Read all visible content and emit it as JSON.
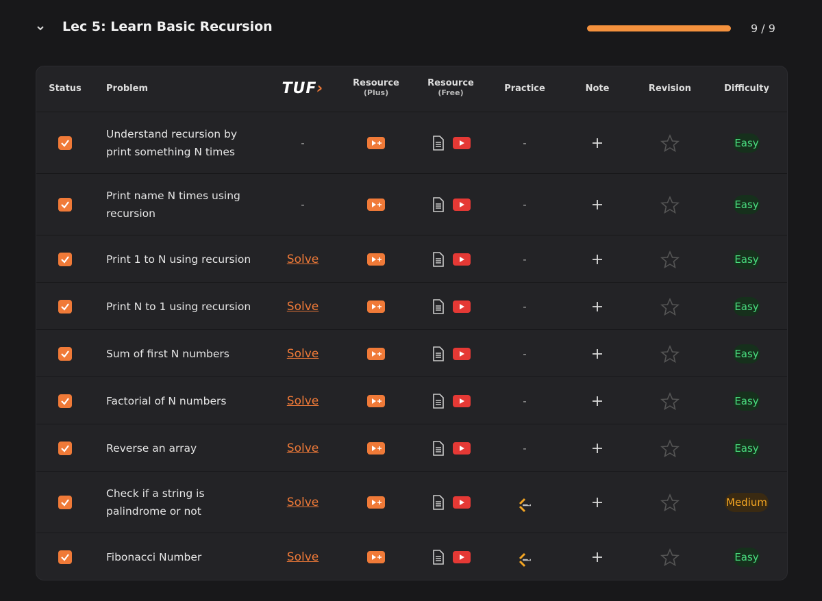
{
  "section": {
    "title": "Lec 5: Learn Basic Recursion",
    "progress": {
      "label": "9 / 9",
      "done": 9,
      "total": 9
    }
  },
  "table": {
    "headers": {
      "status": "Status",
      "problem": "Problem",
      "tuf": "TUF",
      "resource_plus": {
        "main": "Resource",
        "sub": "(Plus)"
      },
      "resource_free": {
        "main": "Resource",
        "sub": "(Free)"
      },
      "practice": "Practice",
      "note": "Note",
      "revision": "Revision",
      "difficulty": "Difficulty"
    },
    "rows": [
      {
        "checked": true,
        "problem": "Understand recursion by print something N times",
        "tuf": "-",
        "practice": "-",
        "difficulty": "Easy"
      },
      {
        "checked": true,
        "problem": "Print name N times using recursion",
        "tuf": "-",
        "practice": "-",
        "difficulty": "Easy"
      },
      {
        "checked": true,
        "problem": "Print 1 to N using recursion",
        "tuf": "Solve",
        "practice": "-",
        "difficulty": "Easy"
      },
      {
        "checked": true,
        "problem": "Print N to 1 using recursion",
        "tuf": "Solve",
        "practice": "-",
        "difficulty": "Easy"
      },
      {
        "checked": true,
        "problem": "Sum of first N numbers",
        "tuf": "Solve",
        "practice": "-",
        "difficulty": "Easy"
      },
      {
        "checked": true,
        "problem": "Factorial of N numbers",
        "tuf": "Solve",
        "practice": "-",
        "difficulty": "Easy"
      },
      {
        "checked": true,
        "problem": "Reverse an array",
        "tuf": "Solve",
        "practice": "-",
        "difficulty": "Easy"
      },
      {
        "checked": true,
        "problem": "Check if a string is palindrome or not",
        "tuf": "Solve",
        "practice": null,
        "difficulty": "Medium"
      },
      {
        "checked": true,
        "problem": "Fibonacci Number",
        "tuf": "Solve",
        "practice": null,
        "difficulty": "Easy"
      }
    ]
  }
}
